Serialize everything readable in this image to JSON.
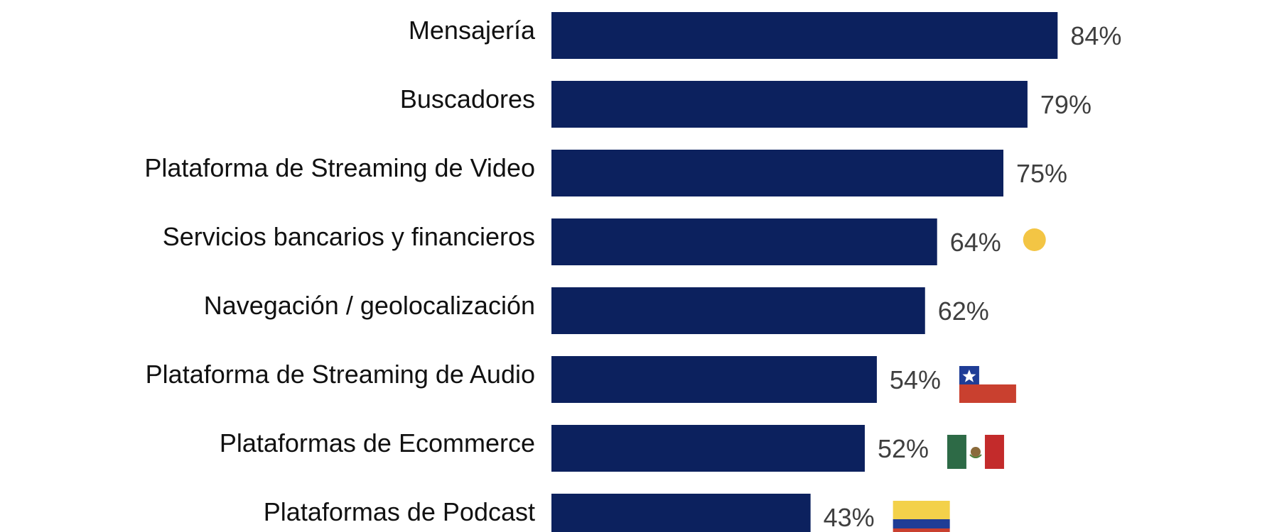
{
  "chart_data": {
    "type": "bar",
    "orientation": "horizontal",
    "categories": [
      "Mensajería",
      "Buscadores",
      "Plataforma de Streaming de Video",
      "Servicios bancarios y financieros",
      "Navegación / geolocalización",
      "Plataforma de Streaming de Audio",
      "Plataformas de Ecommerce",
      "Plataformas de Podcast"
    ],
    "values": [
      84,
      79,
      75,
      64,
      62,
      54,
      52,
      43
    ],
    "value_labels": [
      "84%",
      "79%",
      "75%",
      "64%",
      "62%",
      "54%",
      "52%",
      "43%"
    ],
    "xlim": [
      0,
      100
    ],
    "grid": false,
    "legend": "none",
    "bar_color": "#0c215e"
  },
  "markers": [
    {
      "row": 3,
      "kind": "dot",
      "color": "#f3c544"
    },
    {
      "row": 5,
      "kind": "flag-chile",
      "icon": "chile-flag-icon"
    },
    {
      "row": 6,
      "kind": "flag-mexico",
      "icon": "mexico-flag-icon"
    },
    {
      "row": 7,
      "kind": "flag-colombia",
      "icon": "colombia-flag-icon"
    }
  ],
  "colors": {
    "bar": "#0c215e",
    "category_text": "#111111",
    "value_text": "#3f3f3f",
    "dot": "#f3c544",
    "chile_blue": "#1f3d96",
    "chile_red": "#c9402f",
    "mexico_green": "#2d6a46",
    "mexico_red": "#c32b2b",
    "colombia_yellow": "#f3d14a",
    "colombia_blue": "#1f3d96",
    "colombia_red": "#c9402f"
  }
}
